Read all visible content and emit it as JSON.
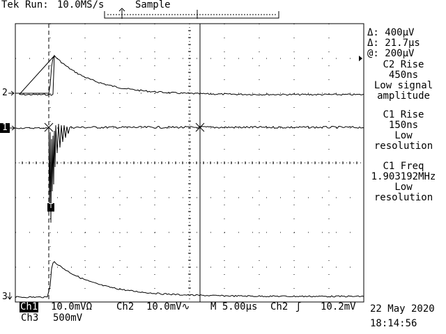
{
  "header": {
    "brand": "Tek",
    "status": "Run:",
    "rate": "10.0MS/s",
    "mode": "Sample"
  },
  "readouts": {
    "delta_v": "Δ: 400µV",
    "delta_t": "Δ: 21.7µs",
    "at_v": "@: 200µV"
  },
  "measurements": [
    {
      "title": "C2 Rise",
      "value": "450ns",
      "note1": "Low signal",
      "note2": "amplitude"
    },
    {
      "title": "C1 Rise",
      "value": "150ns",
      "note1": "Low",
      "note2": "resolution"
    },
    {
      "title": "C1 Freq",
      "value": "1.903192MHz",
      "note1": "Low",
      "note2": "resolution"
    }
  ],
  "channels": {
    "ch2_marker": "2",
    "ch1_marker": "1",
    "ch3_marker": "3",
    "ch1_label": "Ch1",
    "ch1_scale": "10.0mVΩ",
    "ch2_label": "Ch2",
    "ch2_scale": "10.0mV∿",
    "ch3_label": "Ch3",
    "ch3_scale": "500mV"
  },
  "timebase": {
    "main": "M 5.00µs",
    "trigger_src": "Ch2",
    "trigger_slope": "ʃ",
    "trigger_level": "10.2mV"
  },
  "datetime": {
    "date": "22 May 2020",
    "time": "18:14:56"
  },
  "cursor_markers": {
    "t_marker": "T"
  },
  "colors": {
    "background": "#ffffff",
    "trace": "#000000",
    "grid": "#000000"
  }
}
